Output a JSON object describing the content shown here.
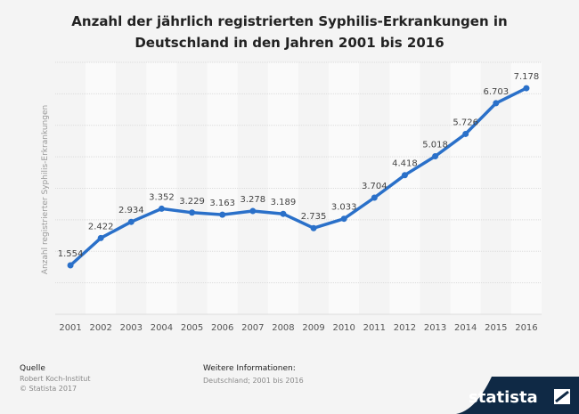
{
  "title": "Anzahl der jährlich registrierten Syphilis-Erkrankungen in Deutschland in den Jahren 2001 bis 2016",
  "colors": {
    "line": "#2a70c9",
    "background": "#f4f4f4",
    "brand": "#0f2945"
  },
  "chart_data": {
    "type": "line",
    "title": "Anzahl der jährlich registrierten Syphilis-Erkrankungen in Deutschland in den Jahren 2001 bis 2016",
    "xlabel": "",
    "ylabel": "Anzahl registrierter Syphilis-Erkrankungen",
    "categories": [
      "2001",
      "2002",
      "2003",
      "2004",
      "2005",
      "2006",
      "2007",
      "2008",
      "2009",
      "2010",
      "2011",
      "2012",
      "2013",
      "2014",
      "2015",
      "2016"
    ],
    "values": [
      1554,
      2422,
      2934,
      3352,
      3229,
      3163,
      3278,
      3189,
      2735,
      3033,
      3704,
      4418,
      5018,
      5726,
      6703,
      7178
    ],
    "labels": [
      "1.554",
      "2.422",
      "2.934",
      "3.352",
      "3.229",
      "3.163",
      "3.278",
      "3.189",
      "2.735",
      "3.033",
      "3.704",
      "4.418",
      "5.018",
      "5.726",
      "6.703",
      "7.178"
    ],
    "ylim": [
      0,
      8000
    ],
    "grid": true,
    "legend": "none"
  },
  "footer": {
    "source_heading": "Quelle",
    "source_name": "Robert Koch-Institut",
    "copyright": "© Statista 2017",
    "info_heading": "Weitere Informationen:",
    "info_text": "Deutschland; 2001 bis 2016"
  },
  "brand": {
    "name": "statista"
  }
}
